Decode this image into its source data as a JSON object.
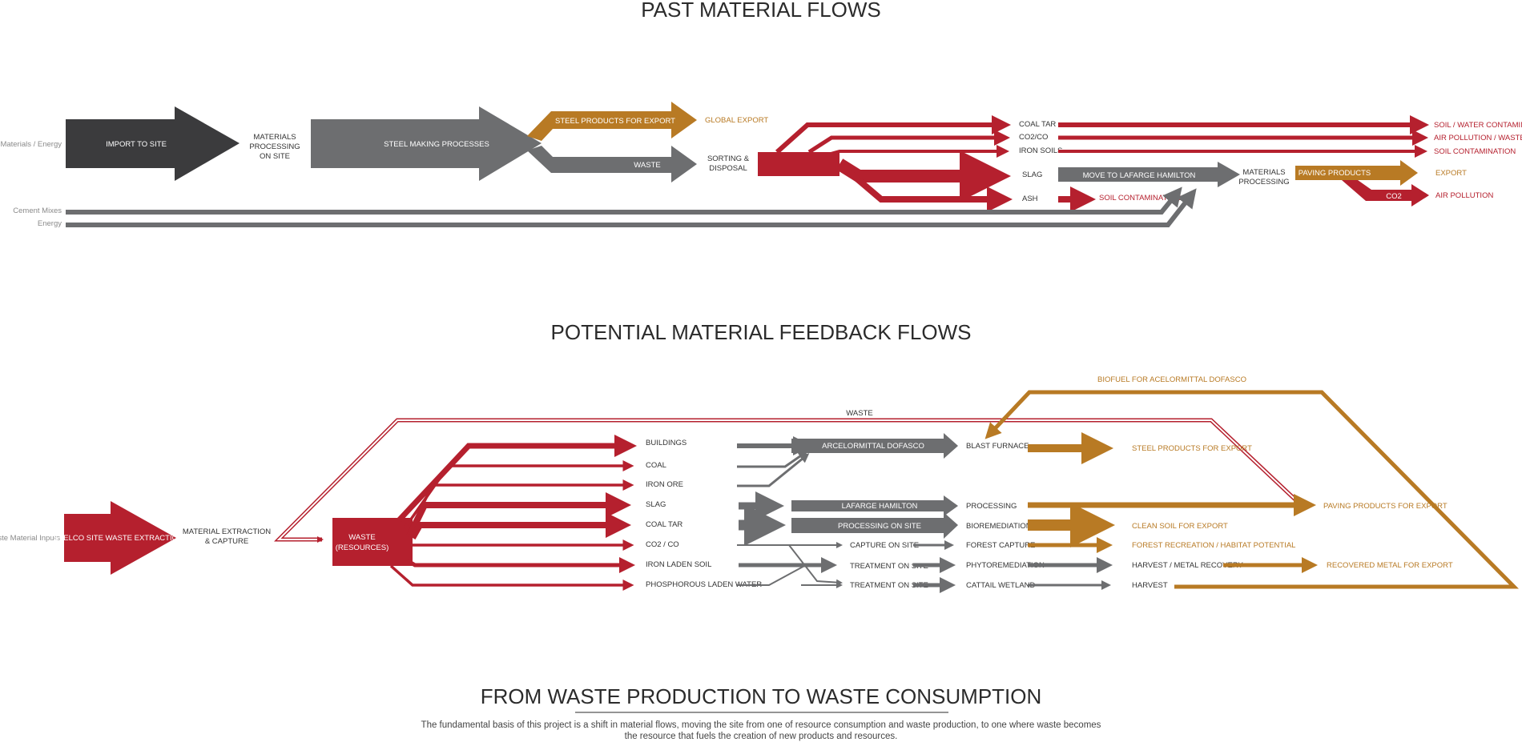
{
  "colors": {
    "dark": "#3b3b3d",
    "gray": "#6d6e70",
    "red": "#b5202e",
    "gold": "#b87a24"
  },
  "past": {
    "title": "PAST MATERIAL FLOWS",
    "raw_materials": "Raw Materials / Energy",
    "import": "IMPORT TO SITE",
    "processing_l1": "MATERIALS",
    "processing_l2": "PROCESSING",
    "processing_l3": "ON SITE",
    "steel_making": "STEEL MAKING PROCESSES",
    "steel_products": "STEEL PRODUCTS FOR EXPORT",
    "global_export": "GLOBAL EXPORT",
    "waste": "WASTE",
    "sorting_l1": "SORTING &",
    "sorting_l2": "DISPOSAL",
    "coal_tar": "COAL TAR",
    "co2co": "CO2/CO",
    "iron_soils": "IRON SOILS",
    "slag": "SLAG",
    "ash": "ASH",
    "soil_contamination_ash": "SOIL CONTAMINATION",
    "move_lafarge": "MOVE TO LAFARGE HAMILTON",
    "mat_proc_l1": "MATERIALS",
    "mat_proc_l2": "PROCESSING",
    "paving": "PAVING PRODUCTS",
    "export": "EXPORT",
    "co2": "CO2",
    "air_pollution": "AIR POLLUTION",
    "soil_water": "SOIL / WATER CONTAMINATION",
    "air_waste_heat": "AIR POLLUTION / WASTE HEAT",
    "soil_contamination": "SOIL CONTAMINATION",
    "cement_mixes": "Cement Mixes",
    "energy": "Energy"
  },
  "potential": {
    "title": "POTENTIAL MATERIAL FEEDBACK FLOWS",
    "waste_inputs": "Waste Material Inputs",
    "stelco": "STELCO SITE WASTE EXTRACTION",
    "extraction_l1": "MATERIAL EXTRACTION",
    "extraction_l2": "& CAPTURE",
    "waste_res_l1": "WASTE",
    "waste_res_l2": "(RESOURCES)",
    "waste_loop": "WASTE",
    "biofuel": "BIOFUEL FOR ACELORMITTAL DOFASCO",
    "rows": [
      "BUILDINGS",
      "COAL",
      "IRON ORE",
      "SLAG",
      "COAL TAR",
      "CO2 / CO",
      "IRON LADEN SOIL",
      "PHOSPHOROUS LADEN WATER"
    ],
    "arcelor": "ARCELORMITTAL DOFASCO",
    "lafarge": "LAFARGE HAMILTON",
    "processing_on_site": "PROCESSING ON SITE",
    "capture_on_site": "CAPTURE ON SITE",
    "treatment_1": "TREATMENT ON SITE",
    "treatment_2": "TREATMENT ON SITE",
    "blast_furnace": "BLAST FURNACE",
    "processing": "PROCESSING",
    "bioremediation": "BIOREMEDIATION",
    "forest_capture": "FOREST CAPTURE",
    "phytoremediation": "PHYTOREMEDIATION",
    "cattail": "CATTAIL WETLAND",
    "steel_export": "STEEL PRODUCTS FOR EXPORT",
    "paving_export": "PAVING PRODUCTS FOR EXPORT",
    "clean_soil": "CLEAN SOIL FOR EXPORT",
    "forest_rec": "FOREST RECREATION / HABITAT POTENTIAL",
    "harvest_metal": "HARVEST / METAL RECOVERY",
    "recovered_metal": "RECOVERED METAL FOR EXPORT",
    "harvest": "HARVEST"
  },
  "footer": {
    "title": "FROM WASTE PRODUCTION TO WASTE CONSUMPTION",
    "line1": "The fundamental basis of this project is a shift in material flows, moving the site from one of resource consumption and waste production, to one where waste becomes",
    "line2": "the resource that fuels the creation of new products and resources."
  }
}
